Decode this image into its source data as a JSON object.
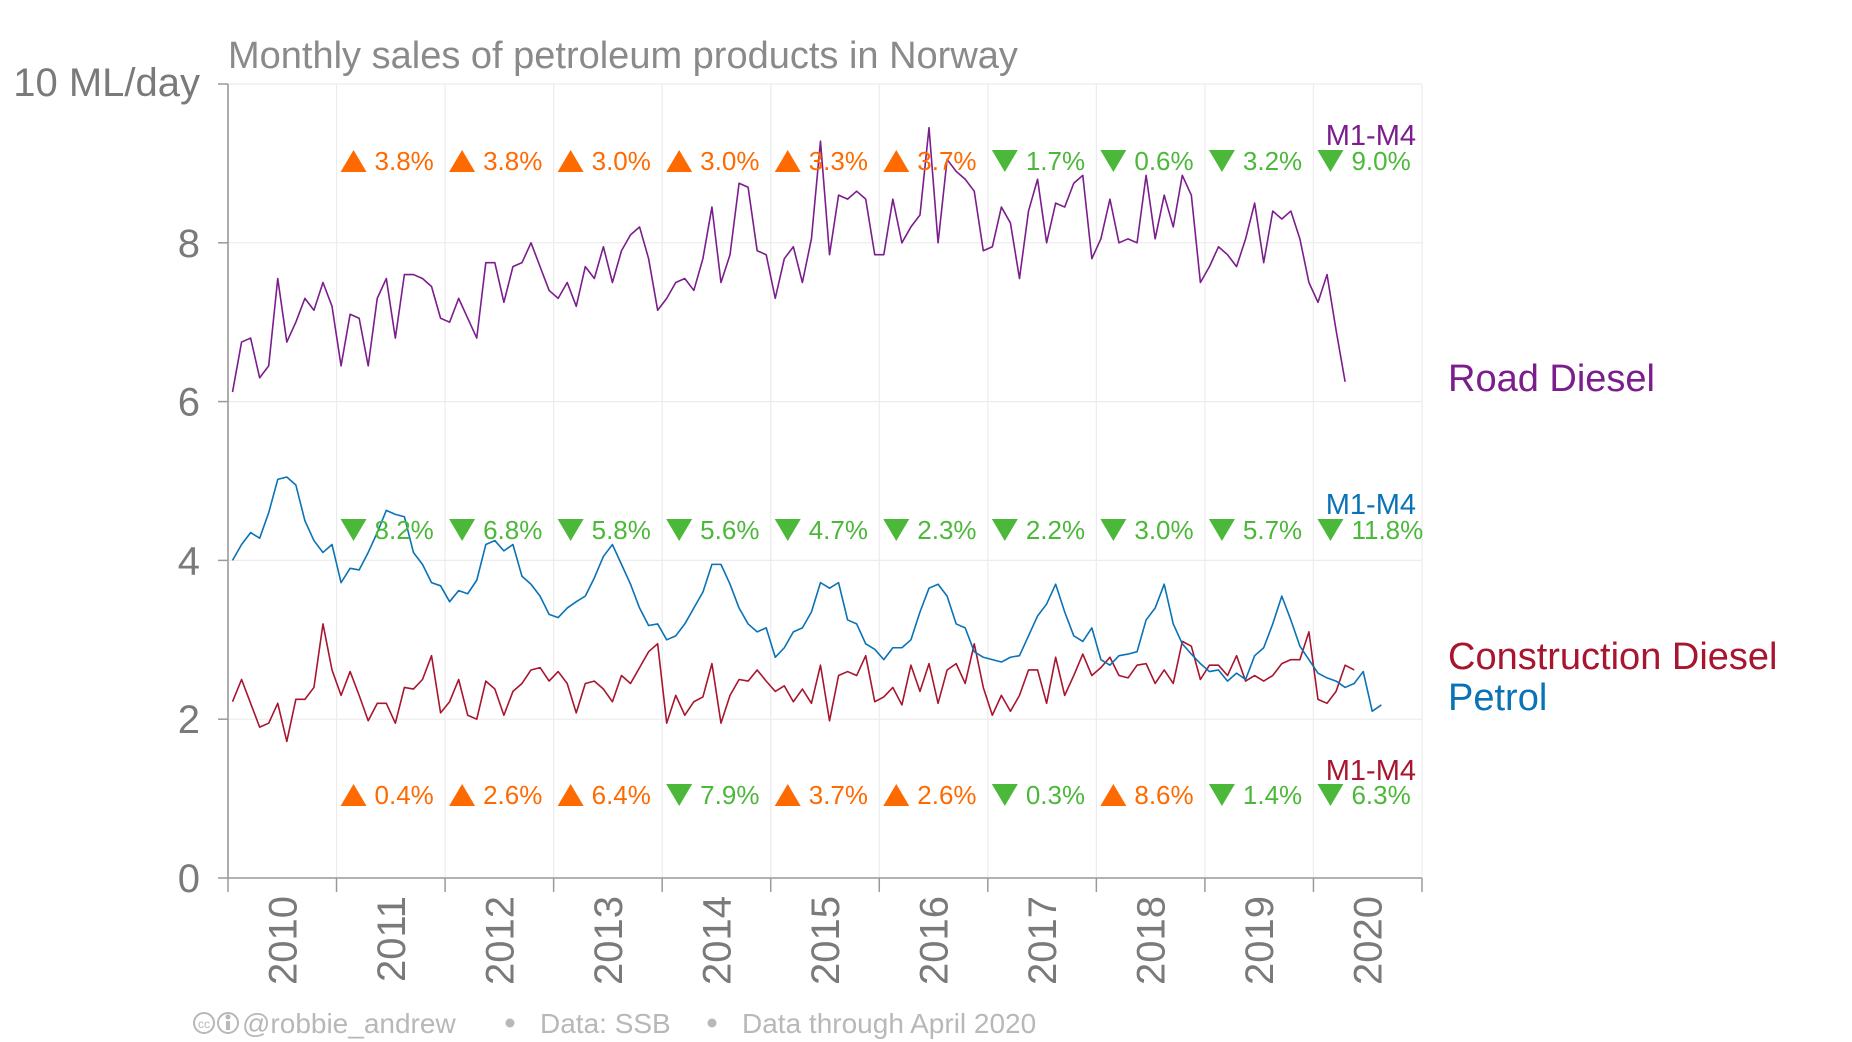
{
  "chart_data": {
    "type": "line",
    "title": "Monthly sales of petroleum products in Norway",
    "ylabel": "10 ML/day",
    "y_ticks": [
      "0",
      "2",
      "4",
      "6",
      "8"
    ],
    "ylim": [
      0,
      10
    ],
    "x_start": "2010-01",
    "x_end": "2020-12",
    "x_tick_labels": [
      "2010",
      "2011",
      "2012",
      "2013",
      "2014",
      "2015",
      "2016",
      "2017",
      "2018",
      "2019",
      "2020"
    ],
    "grid": true,
    "credits": {
      "handle": "@robbie_andrew",
      "source": "Data: SSB",
      "through": "Data through April 2020"
    },
    "series": [
      {
        "name": "Road Diesel",
        "color": "#7b1d8c",
        "annotation_label": "M1-M4",
        "annotations": [
          {
            "dir": "up",
            "text": "3.8%"
          },
          {
            "dir": "up",
            "text": "3.8%"
          },
          {
            "dir": "up",
            "text": "3.0%"
          },
          {
            "dir": "up",
            "text": "3.0%"
          },
          {
            "dir": "up",
            "text": "3.3%"
          },
          {
            "dir": "up",
            "text": "3.7%"
          },
          {
            "dir": "down",
            "text": "1.7%"
          },
          {
            "dir": "down",
            "text": "0.6%"
          },
          {
            "dir": "down",
            "text": "3.2%"
          },
          {
            "dir": "down",
            "text": "9.0%"
          }
        ],
        "values": [
          6.12,
          6.75,
          6.8,
          6.3,
          6.45,
          7.55,
          6.75,
          7.0,
          7.3,
          7.15,
          7.5,
          7.2,
          6.45,
          7.1,
          7.05,
          6.45,
          7.3,
          7.55,
          6.8,
          7.6,
          7.6,
          7.55,
          7.45,
          7.05,
          7.0,
          7.3,
          7.05,
          6.8,
          7.75,
          7.75,
          7.25,
          7.7,
          7.75,
          8.0,
          7.7,
          7.4,
          7.3,
          7.5,
          7.2,
          7.7,
          7.55,
          7.95,
          7.5,
          7.9,
          8.1,
          8.2,
          7.8,
          7.15,
          7.3,
          7.5,
          7.55,
          7.4,
          7.8,
          8.45,
          7.5,
          7.85,
          8.75,
          8.7,
          7.9,
          7.85,
          7.3,
          7.8,
          7.95,
          7.5,
          8.05,
          9.28,
          7.85,
          8.6,
          8.55,
          8.65,
          8.55,
          7.85,
          7.85,
          8.55,
          8.0,
          8.2,
          8.35,
          9.45,
          8.0,
          9.05,
          8.9,
          8.8,
          8.65,
          7.9,
          7.95,
          8.45,
          8.25,
          7.55,
          8.4,
          8.8,
          8.0,
          8.5,
          8.45,
          8.75,
          8.85,
          7.8,
          8.05,
          8.55,
          8.0,
          8.05,
          8.0,
          8.85,
          8.05,
          8.6,
          8.2,
          8.85,
          8.6,
          7.5,
          7.7,
          7.95,
          7.85,
          7.7,
          8.05,
          8.5,
          7.75,
          8.4,
          8.3,
          8.4,
          8.05,
          7.5,
          7.25,
          7.6,
          6.9,
          6.25
        ]
      },
      {
        "name": "Petrol",
        "color": "#0a72b6",
        "annotation_label": "M1-M4",
        "annotations": [
          {
            "dir": "down",
            "text": "8.2%"
          },
          {
            "dir": "down",
            "text": "6.8%"
          },
          {
            "dir": "down",
            "text": "5.8%"
          },
          {
            "dir": "down",
            "text": "5.6%"
          },
          {
            "dir": "down",
            "text": "4.7%"
          },
          {
            "dir": "down",
            "text": "2.3%"
          },
          {
            "dir": "down",
            "text": "2.2%"
          },
          {
            "dir": "down",
            "text": "3.0%"
          },
          {
            "dir": "down",
            "text": "5.7%"
          },
          {
            "dir": "down",
            "text": "11.8%"
          }
        ],
        "values": [
          4.0,
          4.2,
          4.35,
          4.28,
          4.6,
          5.02,
          5.05,
          4.95,
          4.5,
          4.25,
          4.1,
          4.2,
          3.72,
          3.9,
          3.88,
          4.1,
          4.35,
          4.63,
          4.58,
          4.55,
          4.1,
          3.95,
          3.72,
          3.68,
          3.48,
          3.62,
          3.58,
          3.75,
          4.2,
          4.25,
          4.12,
          4.2,
          3.8,
          3.7,
          3.55,
          3.32,
          3.28,
          3.4,
          3.48,
          3.55,
          3.78,
          4.05,
          4.2,
          3.95,
          3.7,
          3.4,
          3.18,
          3.2,
          3.0,
          3.05,
          3.2,
          3.4,
          3.6,
          3.95,
          3.95,
          3.7,
          3.4,
          3.2,
          3.1,
          3.15,
          2.78,
          2.9,
          3.1,
          3.15,
          3.35,
          3.72,
          3.65,
          3.72,
          3.25,
          3.2,
          2.95,
          2.88,
          2.75,
          2.9,
          2.9,
          3.0,
          3.35,
          3.65,
          3.7,
          3.55,
          3.2,
          3.15,
          2.85,
          2.78,
          2.75,
          2.72,
          2.78,
          2.8,
          3.05,
          3.3,
          3.45,
          3.7,
          3.35,
          3.05,
          2.98,
          3.15,
          2.75,
          2.68,
          2.8,
          2.82,
          2.85,
          3.25,
          3.4,
          3.7,
          3.2,
          2.95,
          2.82,
          2.7,
          2.6,
          2.62,
          2.48,
          2.58,
          2.5,
          2.8,
          2.9,
          3.2,
          3.55,
          3.25,
          2.92,
          2.75,
          2.58,
          2.52,
          2.48,
          2.4,
          2.45,
          2.6,
          2.1,
          2.18
        ]
      },
      {
        "name": "Construction Diesel",
        "color": "#a8152e",
        "annotation_label": "M1-M4",
        "annotations": [
          {
            "dir": "up",
            "text": "0.4%"
          },
          {
            "dir": "up",
            "text": "2.6%"
          },
          {
            "dir": "up",
            "text": "6.4%"
          },
          {
            "dir": "down",
            "text": "7.9%"
          },
          {
            "dir": "up",
            "text": "3.7%"
          },
          {
            "dir": "up",
            "text": "2.6%"
          },
          {
            "dir": "down",
            "text": "0.3%"
          },
          {
            "dir": "up",
            "text": "8.6%"
          },
          {
            "dir": "down",
            "text": "1.4%"
          },
          {
            "dir": "down",
            "text": "6.3%"
          }
        ],
        "values": [
          2.22,
          2.5,
          2.2,
          1.9,
          1.95,
          2.2,
          1.72,
          2.25,
          2.25,
          2.4,
          3.2,
          2.62,
          2.3,
          2.6,
          2.3,
          1.98,
          2.2,
          2.2,
          1.95,
          2.4,
          2.38,
          2.5,
          2.8,
          2.08,
          2.22,
          2.5,
          2.05,
          2.0,
          2.48,
          2.38,
          2.05,
          2.35,
          2.45,
          2.62,
          2.65,
          2.48,
          2.6,
          2.45,
          2.08,
          2.45,
          2.48,
          2.38,
          2.22,
          2.55,
          2.45,
          2.65,
          2.85,
          2.95,
          1.95,
          2.3,
          2.05,
          2.22,
          2.28,
          2.7,
          1.95,
          2.3,
          2.5,
          2.48,
          2.62,
          2.48,
          2.35,
          2.42,
          2.22,
          2.38,
          2.2,
          2.68,
          1.98,
          2.55,
          2.6,
          2.55,
          2.8,
          2.22,
          2.28,
          2.4,
          2.18,
          2.68,
          2.35,
          2.7,
          2.2,
          2.62,
          2.7,
          2.45,
          2.95,
          2.4,
          2.05,
          2.3,
          2.1,
          2.3,
          2.62,
          2.62,
          2.2,
          2.78,
          2.3,
          2.55,
          2.82,
          2.55,
          2.65,
          2.78,
          2.55,
          2.52,
          2.68,
          2.7,
          2.45,
          2.62,
          2.45,
          2.98,
          2.92,
          2.5,
          2.68,
          2.68,
          2.55,
          2.8,
          2.48,
          2.55,
          2.48,
          2.55,
          2.7,
          2.75,
          2.75,
          3.1,
          2.25,
          2.2,
          2.35,
          2.68,
          2.62
        ]
      }
    ]
  }
}
